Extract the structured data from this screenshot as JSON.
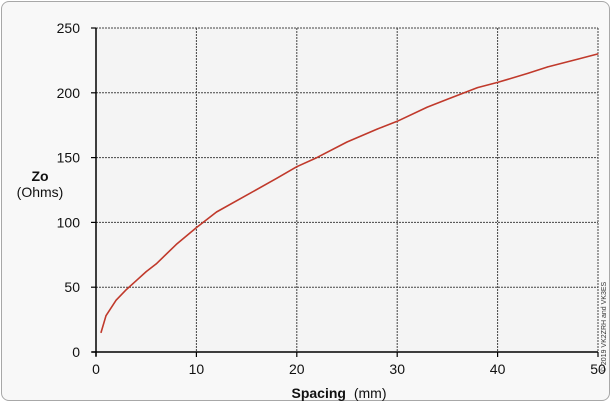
{
  "chart_data": {
    "type": "line",
    "ylabel": "Zo",
    "ylabel_unit": "(Ohms)",
    "xlabel_bold": "Spacing",
    "xlabel_unit": "(mm)",
    "xlim": [
      0,
      50
    ],
    "ylim": [
      0,
      250
    ],
    "x_ticks": [
      "0",
      "10",
      "20",
      "30",
      "40",
      "50"
    ],
    "y_ticks": [
      "0",
      "50",
      "100",
      "150",
      "200",
      "250"
    ],
    "grid": true,
    "copyright": "© 2019 VK2ZRH and VK3ES",
    "series": [
      {
        "color": "#c0392b",
        "x": [
          0.5,
          1,
          2,
          3,
          4,
          5,
          6,
          8,
          10,
          12,
          15,
          18,
          20,
          22,
          25,
          28,
          30,
          33,
          35,
          38,
          40,
          43,
          45,
          48,
          50
        ],
        "y": [
          15,
          28,
          40,
          48,
          55,
          62,
          68,
          83,
          96,
          108,
          121,
          134,
          143,
          150,
          162,
          172,
          178,
          189,
          195,
          204,
          208,
          215,
          220,
          226,
          230
        ]
      }
    ]
  }
}
